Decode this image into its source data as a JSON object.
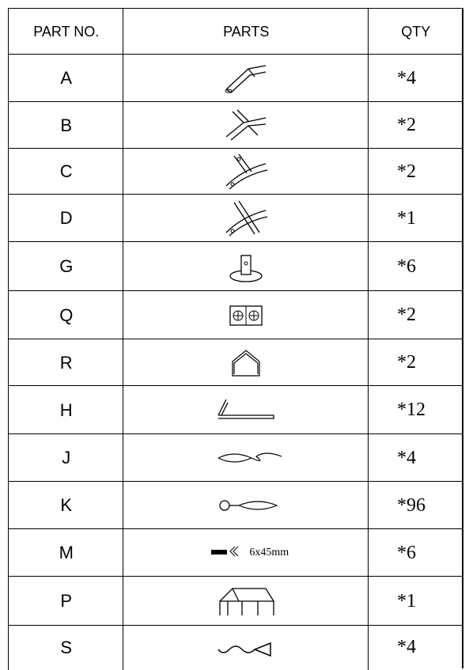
{
  "table": {
    "header": [
      "PART NO.",
      "PARTS",
      "QTY"
    ],
    "rows": [
      {
        "part": "A",
        "qty": "*4"
      },
      {
        "part": "B",
        "qty": "*2"
      },
      {
        "part": "C",
        "qty": "*2"
      },
      {
        "part": "D",
        "qty": "*1"
      },
      {
        "part": "G",
        "qty": "*6"
      },
      {
        "part": "Q",
        "qty": "*2"
      },
      {
        "part": "R",
        "qty": "*2"
      },
      {
        "part": "H",
        "qty": "*12"
      },
      {
        "part": "J",
        "qty": "*4"
      },
      {
        "part": "K",
        "qty": "*96"
      },
      {
        "part": "M",
        "spec": "6x45mm",
        "qty": "*6"
      },
      {
        "part": "P",
        "qty": "*1"
      },
      {
        "part": "S",
        "qty": "*4"
      }
    ]
  }
}
